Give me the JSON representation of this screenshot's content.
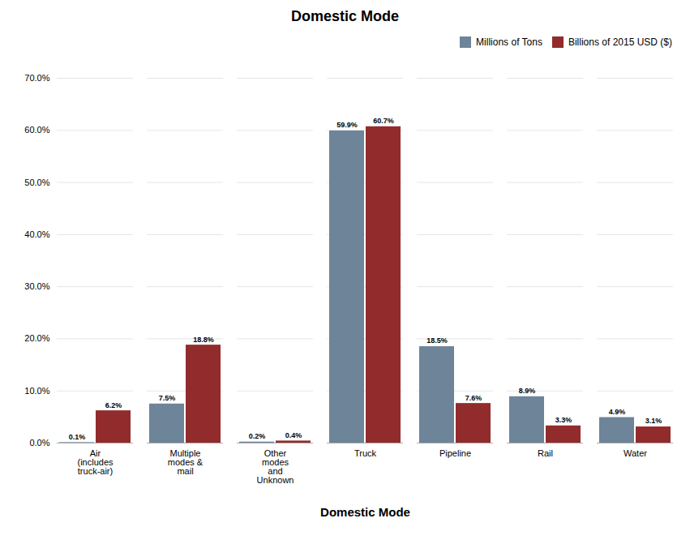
{
  "chart_data": {
    "type": "bar",
    "title": "Domestic Mode",
    "x_label": "Domestic Mode",
    "categories": [
      "Air\n(includes\ntruck-air)",
      "Multiple\nmodes &\nmail",
      "Other\nmodes\nand\nUnknown",
      "Truck",
      "Pipeline",
      "Rail",
      "Water"
    ],
    "series": [
      {
        "name": "Millions of Tons",
        "color": "#6d8499",
        "values": [
          0.1,
          7.5,
          0.2,
          59.9,
          18.5,
          8.9,
          4.9
        ],
        "value_labels": [
          "0.1%",
          "7.5%",
          "0.2%",
          "59.9%",
          "18.5%",
          "8.9%",
          "4.9%"
        ]
      },
      {
        "name": "Billions of 2015 USD ($)",
        "color": "#922b2b",
        "values": [
          6.2,
          18.8,
          0.4,
          60.7,
          7.6,
          3.3,
          3.1
        ],
        "value_labels": [
          "6.2%",
          "18.8%",
          "0.4%",
          "60.7%",
          "7.6%",
          "3.3%",
          "3.1%"
        ]
      }
    ],
    "ylim": [
      0,
      70
    ],
    "yticks": [
      {
        "value": 0,
        "label": "0.0%"
      },
      {
        "value": 10,
        "label": "10.0%"
      },
      {
        "value": 20,
        "label": "20.0%"
      },
      {
        "value": 30,
        "label": "30.0%"
      },
      {
        "value": 40,
        "label": "40.0%"
      },
      {
        "value": 50,
        "label": "50.0%"
      },
      {
        "value": 60,
        "label": "60.0%"
      },
      {
        "value": 70,
        "label": "70.0%"
      }
    ],
    "grid": true,
    "data_labels": true,
    "legend": "upper right"
  }
}
